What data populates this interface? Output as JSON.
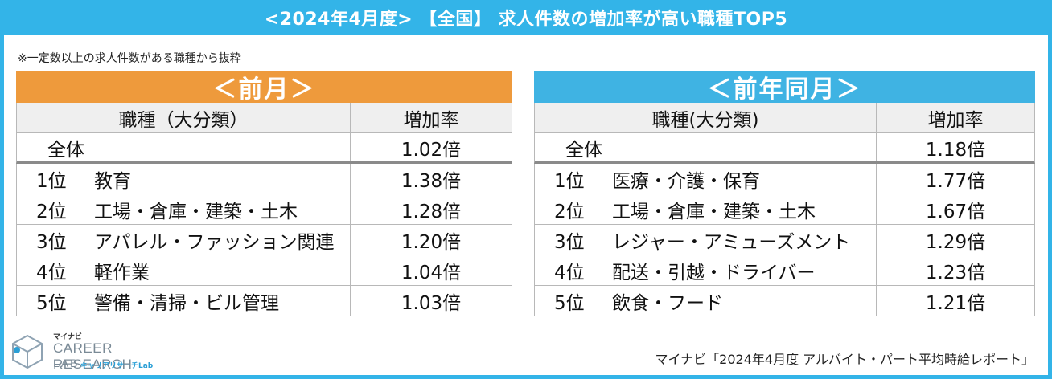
{
  "banner": {
    "title": "<2024年4月度> 【全国】 求人件数の増加率が高い職種TOP5"
  },
  "note": "※一定数以上の求人件数がある職種から抜粋",
  "left": {
    "header": "＜前月＞",
    "col_job": "職種（大分類）",
    "col_rate": "増加率",
    "total_label": "全体",
    "total_rate": "1.02倍",
    "rows": [
      {
        "rank": "1位",
        "job": "教育",
        "rate": "1.38倍"
      },
      {
        "rank": "2位",
        "job": "工場・倉庫・建築・土木",
        "rate": "1.28倍"
      },
      {
        "rank": "3位",
        "job": "アパレル・ファッション関連",
        "rate": "1.20倍"
      },
      {
        "rank": "4位",
        "job": "軽作業",
        "rate": "1.04倍"
      },
      {
        "rank": "5位",
        "job": "警備・清掃・ビル管理",
        "rate": "1.03倍"
      }
    ]
  },
  "right": {
    "header": "＜前年同月＞",
    "col_job": "職種(大分類)",
    "col_rate": "増加率",
    "total_label": "全体",
    "total_rate": "1.18倍",
    "rows": [
      {
        "rank": "1位",
        "job": "医療・介護・保育",
        "rate": "1.77倍"
      },
      {
        "rank": "2位",
        "job": "工場・倉庫・建築・土木",
        "rate": "1.67倍"
      },
      {
        "rank": "3位",
        "job": "レジャー・アミューズメント",
        "rate": "1.29倍"
      },
      {
        "rank": "4位",
        "job": "配送・引越・ドライバー",
        "rate": "1.23倍"
      },
      {
        "rank": "5位",
        "job": "飲食・フード",
        "rate": "1.21倍"
      }
    ]
  },
  "logo": {
    "small": "マイナビ",
    "main": "CAREER RESEARCH",
    "lab": "LAB",
    "sub": "キャリアリサーチLab"
  },
  "source": "マイナビ「2024年4月度 アルバイト・パート平均時給レポート」",
  "colors": {
    "banner": "#33b4e8",
    "left_header": "#ee9a3c",
    "right_header": "#3fb3e3"
  }
}
